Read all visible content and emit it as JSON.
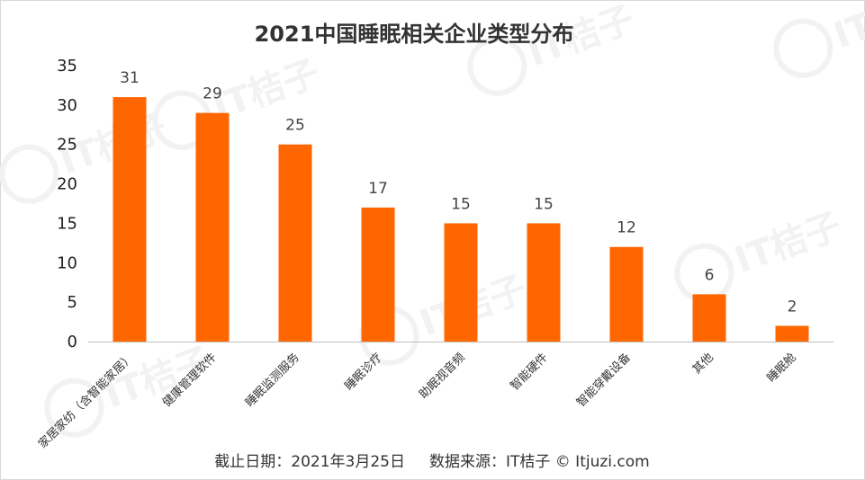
{
  "chart_data": {
    "type": "bar",
    "title": "2021中国睡眠相关企业类型分布",
    "categories": [
      "家居家纺（含智能家居）",
      "健康管理软件",
      "睡眠监测服务",
      "睡眠诊疗",
      "助眠视音频",
      "智能硬件",
      "智能穿戴设备",
      "其他",
      "睡眠舱"
    ],
    "values": [
      31,
      29,
      25,
      17,
      15,
      15,
      12,
      6,
      2
    ],
    "xlabel": "",
    "ylabel": "",
    "ylim": [
      0,
      35
    ],
    "yticks": [
      0,
      5,
      10,
      15,
      20,
      25,
      30,
      35
    ],
    "grid": false,
    "legend": "none",
    "data_labels": true,
    "bar_color": "#ff6600"
  },
  "footer": "截止日期：2021年3月25日     数据来源：IT桔子 © Itjuzi.com",
  "watermark": "IT桔子",
  "colors": {
    "bar": "#ff6600",
    "axis": "#bfbfbf",
    "watermark": "#f2f2f2"
  }
}
